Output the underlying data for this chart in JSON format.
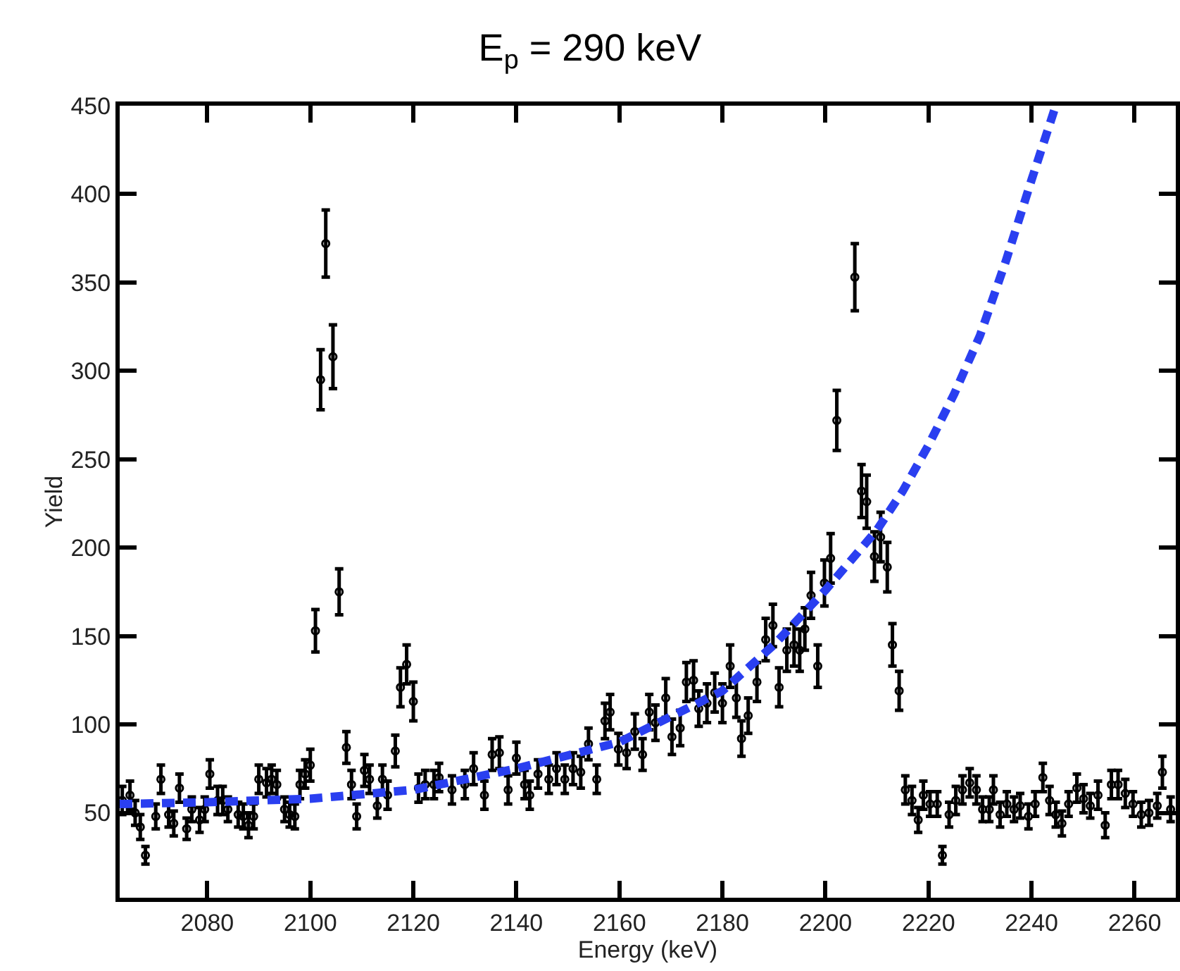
{
  "chart_data": {
    "type": "scatter",
    "title": "E$_{p}$ = 290 keV",
    "xlabel": "Energy (keV)",
    "ylabel": "Yield",
    "xlim": [
      2063,
      2268
    ],
    "xticks": [
      2080,
      2100,
      2120,
      2140,
      2160,
      2180,
      2200,
      2220,
      2240,
      2260
    ],
    "ylim": [
      2,
      450
    ],
    "yticks": [
      50,
      100,
      150,
      200,
      250,
      300,
      350,
      400,
      450
    ],
    "grid": false,
    "marker": "circle",
    "series": [
      {
        "color": "#000000",
        "x": [
          2063.5,
          2065,
          2066,
          2067,
          2068,
          2070,
          2071,
          2072.5,
          2073.5,
          2074.6,
          2076,
          2077,
          2078.5,
          2079.5,
          2080.5,
          2082,
          2083,
          2084,
          2086,
          2087,
          2088,
          2089,
          2090,
          2091.5,
          2092.5,
          2093.5,
          2095,
          2096,
          2097,
          2098,
          2099,
          2100,
          2101,
          2102,
          2103,
          2104.4,
          2105.6,
          2107,
          2108,
          2109,
          2110.5,
          2111.5,
          2113,
          2114,
          2115,
          2116.5,
          2117.5,
          2118.7,
          2120,
          2121,
          2122.3,
          2124,
          2125,
          2127.5,
          2130,
          2131.7,
          2133.8,
          2135.3,
          2136.7,
          2138.4,
          2140,
          2141.6,
          2142.6,
          2144.2,
          2146.3,
          2147.8,
          2149.4,
          2151,
          2152.5,
          2154,
          2155.6,
          2157.2,
          2158.2,
          2159.8,
          2161.4,
          2163,
          2164.5,
          2165.8,
          2167,
          2169,
          2170.2,
          2171.8,
          2173,
          2174.4,
          2175.4,
          2177,
          2178.5,
          2180,
          2181.5,
          2182.7,
          2183.7,
          2185,
          2186.7,
          2188.4,
          2189.8,
          2191,
          2192.5,
          2193.9,
          2195,
          2196,
          2197.2,
          2198.5,
          2199.8,
          2201,
          2202.2,
          2205.7,
          2207,
          2208,
          2209.5,
          2210.7,
          2212,
          2213,
          2214.3,
          2215.5,
          2216.8,
          2218,
          2219,
          2220.3,
          2221.7,
          2222.7,
          2224,
          2225.3,
          2226.6,
          2228,
          2229.3,
          2230.5,
          2231.8,
          2232.6,
          2233.9,
          2235.2,
          2236.6,
          2237.8,
          2239.4,
          2240.7,
          2242.2,
          2243.5,
          2244.7,
          2245.9,
          2247.2,
          2248.8,
          2250.1,
          2251.4,
          2252.9,
          2254.3,
          2255.5,
          2256.8,
          2258.2,
          2259.7,
          2261.3,
          2262.8,
          2264.4,
          2265.4,
          2267
        ],
        "values": [
          57,
          60,
          50,
          42,
          26,
          48,
          69,
          49,
          44,
          64,
          41,
          52,
          46,
          52,
          72,
          57,
          57,
          52,
          49,
          48,
          43,
          48,
          69,
          67,
          69,
          66,
          52,
          49,
          48,
          66,
          72,
          77,
          153,
          295,
          372,
          308,
          175,
          87,
          66,
          48,
          74,
          69,
          54,
          69,
          60,
          85,
          121,
          134,
          113,
          64,
          66,
          66,
          70,
          63,
          66,
          75,
          60,
          83,
          84,
          63,
          81,
          66,
          60,
          72,
          69,
          75,
          69,
          75,
          73,
          89,
          69,
          102,
          107,
          86,
          84,
          96,
          83,
          107,
          101,
          115,
          93,
          98,
          124,
          125,
          109,
          112,
          118,
          112,
          133,
          115,
          92,
          105,
          124,
          148,
          156,
          121,
          142,
          145,
          142,
          154,
          173,
          133,
          180,
          194,
          272,
          353,
          232,
          226,
          195,
          206,
          189,
          145,
          119,
          63,
          57,
          46,
          60,
          55,
          55,
          26,
          49,
          57,
          63,
          67,
          63,
          52,
          52,
          63,
          49,
          55,
          52,
          54,
          48,
          55,
          70,
          57,
          49,
          44,
          55,
          64,
          58,
          54,
          60,
          43,
          66,
          66,
          61,
          55,
          49,
          50,
          54,
          73,
          52
        ],
        "errors": [
          8,
          8,
          7,
          7,
          5,
          7,
          8,
          7,
          7,
          8,
          6,
          7,
          7,
          7,
          8,
          8,
          8,
          7,
          7,
          7,
          7,
          7,
          8,
          8,
          8,
          8,
          7,
          7,
          7,
          8,
          8,
          9,
          12,
          17,
          19,
          18,
          13,
          9,
          8,
          7,
          9,
          8,
          7,
          8,
          8,
          9,
          11,
          11,
          11,
          8,
          8,
          8,
          8,
          8,
          8,
          9,
          8,
          9,
          9,
          8,
          9,
          8,
          8,
          8,
          8,
          9,
          8,
          9,
          9,
          9,
          8,
          10,
          10,
          9,
          9,
          10,
          9,
          10,
          10,
          11,
          10,
          10,
          11,
          11,
          10,
          11,
          11,
          11,
          12,
          11,
          10,
          10,
          11,
          12,
          12,
          11,
          12,
          12,
          12,
          12,
          13,
          12,
          13,
          14,
          17,
          19,
          15,
          15,
          14,
          14,
          14,
          12,
          11,
          8,
          8,
          7,
          8,
          7,
          7,
          5,
          7,
          8,
          8,
          8,
          8,
          7,
          7,
          8,
          7,
          7,
          7,
          7,
          7,
          7,
          8,
          8,
          7,
          7,
          7,
          8,
          8,
          7,
          8,
          7,
          8,
          8,
          8,
          7,
          7,
          7,
          7,
          9,
          7
        ]
      },
      {
        "type": "line",
        "color": "#2a3ff0",
        "marker": "none",
        "line_style": "dashed",
        "x": [
          2063,
          2080,
          2100,
          2120,
          2140,
          2160,
          2180,
          2190,
          2200,
          2210,
          2215,
          2220,
          2225,
          2230,
          2235,
          2240,
          2244.7
        ],
        "values": [
          55,
          56,
          58,
          63,
          75,
          90,
          119,
          145,
          176,
          210,
          232,
          258,
          287,
          320,
          362,
          408,
          450
        ]
      }
    ]
  }
}
